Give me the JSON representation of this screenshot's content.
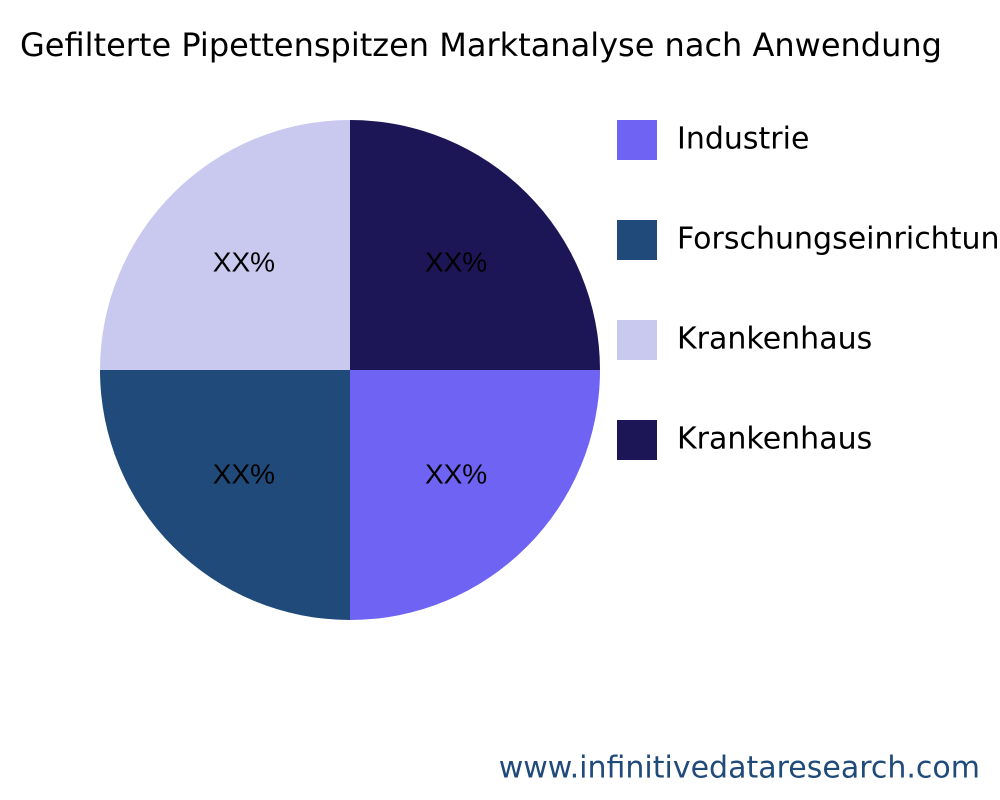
{
  "chart_data": {
    "type": "pie",
    "title": "Gefilterte Pipettenspitzen Marktanalyse nach Anwendung",
    "categories": [
      "Industrie",
      "Forschungseinrichtung",
      "Krankenhaus",
      "Krankenhaus"
    ],
    "values": [
      25,
      25,
      25,
      25
    ],
    "value_labels": [
      "XX%",
      "XX%",
      "XX%",
      "XX%"
    ],
    "colors": [
      "#6f63f3",
      "#1f4a7a",
      "#c9c9f0",
      "#1c1656"
    ],
    "source": "www.infinitivedataresearch.com"
  }
}
